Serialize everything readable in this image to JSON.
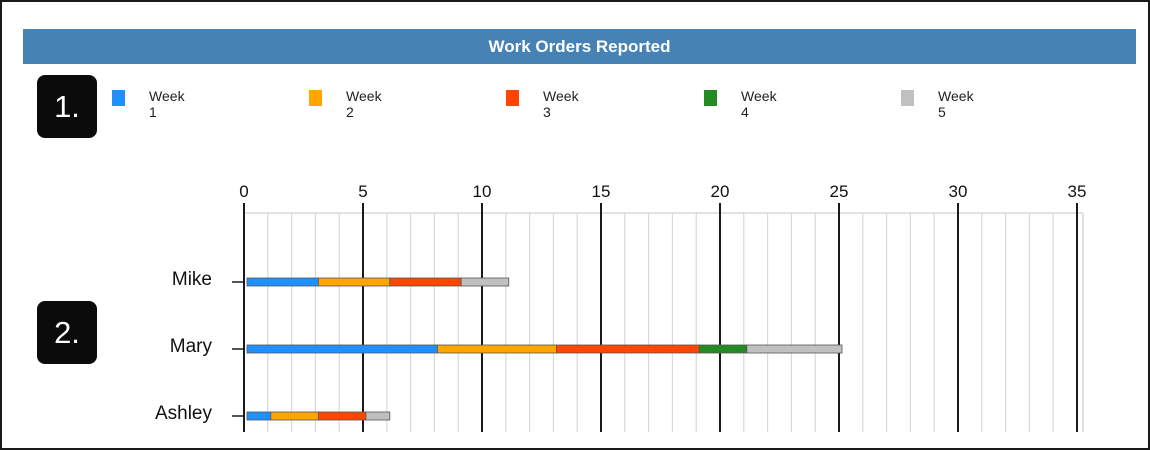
{
  "colors": {
    "title_bar": "#4682b4",
    "badge": "#0b0b0b",
    "major_grid": "#1a1a1a",
    "minor_grid": "#d9d9d9"
  },
  "badges": {
    "first": "1.",
    "second": "2."
  },
  "chart_data": {
    "type": "bar",
    "orientation": "horizontal",
    "stacked": true,
    "title": "Work Orders Reported",
    "categories": [
      "Mike",
      "Mary",
      "Ashley"
    ],
    "series": [
      {
        "name": "Week 1",
        "color": "#1e90ff",
        "values": [
          3,
          8,
          1
        ]
      },
      {
        "name": "Week 2",
        "color": "#ffa500",
        "values": [
          3,
          5,
          2
        ]
      },
      {
        "name": "Week 3",
        "color": "#ff4500",
        "values": [
          3,
          6,
          2
        ]
      },
      {
        "name": "Week 4",
        "color": "#228b22",
        "values": [
          0,
          2,
          0
        ]
      },
      {
        "name": "Week 5",
        "color": "#c0c0c0",
        "values": [
          2,
          4,
          1
        ]
      }
    ],
    "xlim": [
      0,
      35
    ],
    "xticks": [
      0,
      5,
      10,
      15,
      20,
      25,
      30,
      35
    ],
    "minor_step": 1,
    "grid": true,
    "legend_position": "top"
  }
}
